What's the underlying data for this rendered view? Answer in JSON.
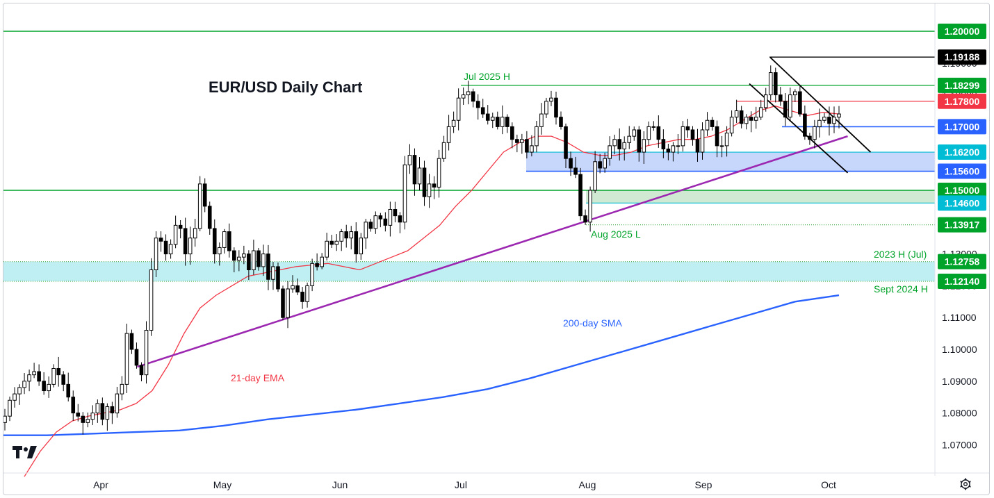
{
  "colors": {
    "candle": "#000000",
    "ema": "#f23645",
    "sma": "#2962ff",
    "trendline": "#9c27b0",
    "green_level": "#00a32a",
    "blue_level": "#2962ff",
    "cyan_level": "#00bcd4",
    "red_level": "#f23645",
    "black_level": "#000000"
  },
  "chart_data": {
    "type": "candlestick",
    "title": "EUR/USD Daily Chart",
    "instrument": "EUR/USD",
    "timeframe": "Daily",
    "y_range": [
      1.058,
      1.2085
    ],
    "y_axis_ticks": [
      "1.07000",
      "1.08000",
      "1.09000",
      "1.10000",
      "1.11000",
      "1.12000",
      "1.13000",
      "1.18000",
      "1.19000"
    ],
    "x_axis_ticks": [
      {
        "label": "Apr",
        "date": "2025-04-01"
      },
      {
        "label": "May",
        "date": "2025-05-01"
      },
      {
        "label": "Jun",
        "date": "2025-06-02"
      },
      {
        "label": "Jul",
        "date": "2025-07-01"
      },
      {
        "label": "Aug",
        "date": "2025-08-01"
      },
      {
        "label": "Sep",
        "date": "2025-09-01"
      },
      {
        "label": "Oct",
        "date": "2025-10-01"
      }
    ],
    "x_range": [
      "2025-03-06",
      "2025-10-31"
    ],
    "levels": [
      {
        "label": "1.20000",
        "value": 1.2,
        "color": "green"
      },
      {
        "label": "1.19188",
        "value": 1.19188,
        "color": "black"
      },
      {
        "label": "1.18299",
        "value": 1.18299,
        "color": "green"
      },
      {
        "label": "1.17800",
        "value": 1.178,
        "color": "red"
      },
      {
        "label": "1.17000",
        "value": 1.17,
        "color": "blue"
      },
      {
        "label": "1.16200",
        "value": 1.162,
        "color": "cyan"
      },
      {
        "label": "1.15600",
        "value": 1.156,
        "color": "blue"
      },
      {
        "label": "1.15000",
        "value": 1.15,
        "color": "green"
      },
      {
        "label": "1.14600",
        "value": 1.146,
        "color": "cyan"
      },
      {
        "label": "1.13917",
        "value": 1.13917,
        "color": "green"
      },
      {
        "label": "1.12758",
        "value": 1.12758,
        "color": "green"
      },
      {
        "label": "1.12140",
        "value": 1.1214,
        "color": "green"
      }
    ],
    "zones": [
      {
        "from": 1.156,
        "to": 1.162,
        "color": "blue"
      },
      {
        "from": 1.146,
        "to": 1.15,
        "color": "green"
      },
      {
        "from": 1.1214,
        "to": 1.12758,
        "color": "cyan"
      }
    ],
    "annotations": [
      {
        "text": "Jul 2025 H",
        "color": "green"
      },
      {
        "text": "Aug 2025 L",
        "color": "green"
      },
      {
        "text": "2023 H (Jul)",
        "color": "green"
      },
      {
        "text": "Sept 2024 H",
        "color": "green"
      },
      {
        "text": "200-day SMA",
        "color": "blue"
      },
      {
        "text": "21-day EMA",
        "color": "red"
      }
    ],
    "trendline": {
      "from": {
        "date": "2025-04-10",
        "price": 1.0945
      },
      "to": {
        "date": "2025-10-06",
        "price": 1.167
      }
    },
    "channel": {
      "upper": {
        "from": {
          "date": "2025-09-17",
          "price": 1.1918
        },
        "to": {
          "date": "2025-10-12",
          "price": 1.162
        }
      },
      "lower": {
        "from": {
          "date": "2025-09-12",
          "price": 1.1835
        },
        "to": {
          "date": "2025-10-06",
          "price": 1.1555
        }
      }
    },
    "close_series_approx": [
      1.079,
      1.084,
      1.086,
      1.088,
      1.09,
      1.092,
      1.093,
      1.09,
      1.087,
      1.089,
      1.094,
      1.092,
      1.089,
      1.085,
      1.08,
      1.079,
      1.077,
      1.078,
      1.08,
      1.083,
      1.078,
      1.082,
      1.08,
      1.086,
      1.089,
      1.105,
      1.1,
      1.095,
      1.092,
      1.106,
      1.125,
      1.135,
      1.134,
      1.13,
      1.133,
      1.139,
      1.138,
      1.13,
      1.135,
      1.138,
      1.152,
      1.145,
      1.138,
      1.13,
      1.132,
      1.137,
      1.131,
      1.128,
      1.129,
      1.13,
      1.125,
      1.131,
      1.126,
      1.13,
      1.122,
      1.126,
      1.119,
      1.11,
      1.119,
      1.12,
      1.118,
      1.115,
      1.12,
      1.127,
      1.126,
      1.129,
      1.134,
      1.133,
      1.134,
      1.137,
      1.135,
      1.137,
      1.13,
      1.135,
      1.14,
      1.138,
      1.142,
      1.141,
      1.139,
      1.144,
      1.142,
      1.14,
      1.158,
      1.161,
      1.152,
      1.157,
      1.148,
      1.152,
      1.151,
      1.16,
      1.165,
      1.17,
      1.172,
      1.179,
      1.18,
      1.181,
      1.178,
      1.176,
      1.174,
      1.172,
      1.173,
      1.17,
      1.173,
      1.17,
      1.166,
      1.165,
      1.166,
      1.162,
      1.164,
      1.17,
      1.174,
      1.178,
      1.179,
      1.173,
      1.17,
      1.16,
      1.157,
      1.155,
      1.142,
      1.14,
      1.15,
      1.159,
      1.157,
      1.16,
      1.164,
      1.166,
      1.163,
      1.165,
      1.167,
      1.169,
      1.162,
      1.166,
      1.17,
      1.17,
      1.166,
      1.163,
      1.162,
      1.164,
      1.164,
      1.17,
      1.169,
      1.166,
      1.162,
      1.169,
      1.172,
      1.17,
      1.164,
      1.164,
      1.168,
      1.173,
      1.175,
      1.171,
      1.173,
      1.172,
      1.173,
      1.176,
      1.18,
      1.187,
      1.18,
      1.178,
      1.173,
      1.18,
      1.181,
      1.174,
      1.167,
      1.166,
      1.17,
      1.172,
      1.173,
      1.171,
      1.173,
      1.174
    ],
    "ema21_approx": [
      1.06,
      1.068,
      1.074,
      1.0775,
      1.079,
      1.08,
      1.081,
      1.083,
      1.087,
      1.095,
      1.105,
      1.113,
      1.117,
      1.12,
      1.123,
      1.124,
      1.125,
      1.126,
      1.1265,
      1.127,
      1.126,
      1.125,
      1.127,
      1.129,
      1.131,
      1.135,
      1.139,
      1.145,
      1.15,
      1.156,
      1.162,
      1.165,
      1.167,
      1.167,
      1.165,
      1.162,
      1.161,
      1.161,
      1.162,
      1.164,
      1.165,
      1.166,
      1.166,
      1.167,
      1.169,
      1.172,
      1.175,
      1.1765,
      1.175,
      1.1735,
      1.1745,
      1.174
    ],
    "sma200_approx": [
      1.073,
      1.073,
      1.0735,
      1.074,
      1.0745,
      1.076,
      1.078,
      1.0795,
      1.081,
      1.083,
      1.085,
      1.0875,
      1.091,
      1.095,
      1.099,
      1.103,
      1.107,
      1.111,
      1.115,
      1.117
    ]
  },
  "watermark": "TV"
}
